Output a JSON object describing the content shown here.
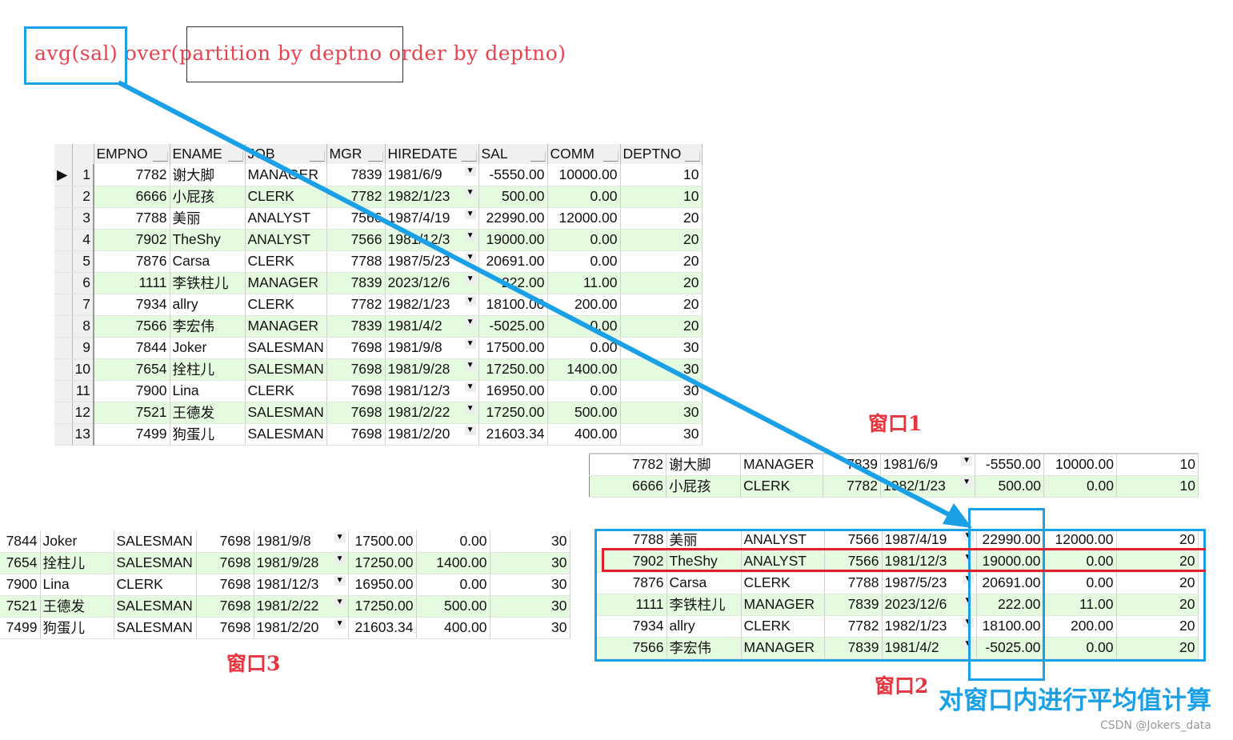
{
  "sql": {
    "part1": "avg(sal)",
    "part2": " over(",
    "part3": "partition by deptno",
    "part4": " order by deptno)"
  },
  "columns": [
    "EMPNO",
    "ENAME",
    "JOB",
    "MGR",
    "HIREDATE",
    "SAL",
    "COMM",
    "DEPTNO"
  ],
  "rows": [
    [
      "7782",
      "谢大脚",
      "MANAGER",
      "7839",
      "1981/6/9",
      "-5550.00",
      "10000.00",
      "10"
    ],
    [
      "6666",
      "小屁孩",
      "CLERK",
      "7782",
      "1982/1/23",
      "500.00",
      "0.00",
      "10"
    ],
    [
      "7788",
      "美丽",
      "ANALYST",
      "7566",
      "1987/4/19",
      "22990.00",
      "12000.00",
      "20"
    ],
    [
      "7902",
      "TheShy",
      "ANALYST",
      "7566",
      "1981/12/3",
      "19000.00",
      "0.00",
      "20"
    ],
    [
      "7876",
      "Carsa",
      "CLERK",
      "7788",
      "1987/5/23",
      "20691.00",
      "0.00",
      "20"
    ],
    [
      "1111",
      "李铁柱儿",
      "MANAGER",
      "7839",
      "2023/12/6",
      "222.00",
      "11.00",
      "20"
    ],
    [
      "7934",
      "allry",
      "CLERK",
      "7782",
      "1982/1/23",
      "18100.00",
      "200.00",
      "20"
    ],
    [
      "7566",
      "李宏伟",
      "MANAGER",
      "7839",
      "1981/4/2",
      "-5025.00",
      "0.00",
      "20"
    ],
    [
      "7844",
      "Joker",
      "SALESMAN",
      "7698",
      "1981/9/8",
      "17500.00",
      "0.00",
      "30"
    ],
    [
      "7654",
      "拴柱儿",
      "SALESMAN",
      "7698",
      "1981/9/28",
      "17250.00",
      "1400.00",
      "30"
    ],
    [
      "7900",
      "Lina",
      "CLERK",
      "7698",
      "1981/12/3",
      "16950.00",
      "0.00",
      "30"
    ],
    [
      "7521",
      "王德发",
      "SALESMAN",
      "7698",
      "1981/2/22",
      "17250.00",
      "500.00",
      "30"
    ],
    [
      "7499",
      "狗蛋儿",
      "SALESMAN",
      "7698",
      "1981/2/20",
      "21603.34",
      "400.00",
      "30"
    ]
  ],
  "row_numbers": [
    "1",
    "2",
    "3",
    "4",
    "5",
    "6",
    "7",
    "8",
    "9",
    "10",
    "11",
    "12",
    "13"
  ],
  "labels": {
    "window1": "窗口1",
    "window2": "窗口2",
    "window3": "窗口3",
    "caption": "对窗口内进行平均值计算"
  },
  "watermark": "CSDN @Jokers_data",
  "colors": {
    "sql_text": "#e8434f",
    "highlight_blue": "#1aa0e6",
    "highlight_red": "#e0202a",
    "row_alt": "#e5fbe0"
  }
}
